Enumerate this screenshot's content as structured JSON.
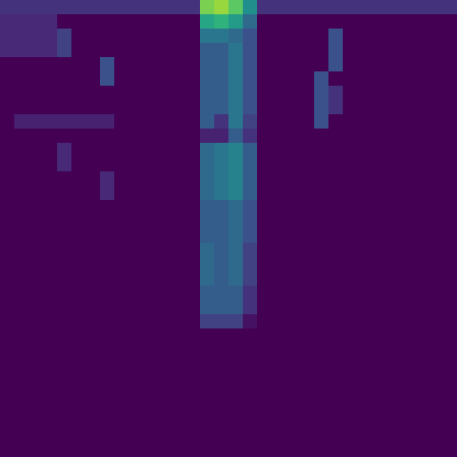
{
  "chart_data": {
    "type": "heatmap",
    "tick_labels": false,
    "color_range": [
      0,
      1
    ],
    "cells": [
      [
        0.15,
        0.15,
        0.15,
        0.15,
        0.15,
        0.15,
        0.15,
        0.15,
        0.15,
        0.15,
        0.15,
        0.15,
        0.15,
        0.15,
        0.8,
        0.85,
        0.75,
        0.5,
        0.15,
        0.15,
        0.15,
        0.15,
        0.15,
        0.15,
        0.15,
        0.15,
        0.15,
        0.15,
        0.15,
        0.15,
        0.15,
        0.15
      ],
      [
        0.12,
        0.12,
        0.12,
        0.12,
        0,
        0,
        0,
        0,
        0,
        0,
        0,
        0,
        0,
        0,
        0.6,
        0.65,
        0.55,
        0.35,
        0,
        0,
        0,
        0,
        0,
        0,
        0,
        0,
        0,
        0,
        0,
        0,
        0,
        0
      ],
      [
        0.12,
        0.12,
        0.12,
        0.12,
        0.2,
        0,
        0,
        0,
        0,
        0,
        0,
        0,
        0,
        0,
        0.4,
        0.4,
        0.35,
        0.25,
        0,
        0,
        0,
        0,
        0,
        0.25,
        0,
        0,
        0,
        0,
        0,
        0,
        0,
        0
      ],
      [
        0.12,
        0.12,
        0.12,
        0.12,
        0.2,
        0,
        0,
        0,
        0,
        0,
        0,
        0,
        0,
        0,
        0.3,
        0.3,
        0.4,
        0.25,
        0,
        0,
        0,
        0,
        0,
        0.25,
        0,
        0,
        0,
        0,
        0,
        0,
        0,
        0
      ],
      [
        0,
        0,
        0,
        0,
        0,
        0,
        0,
        0.25,
        0,
        0,
        0,
        0,
        0,
        0,
        0.3,
        0.3,
        0.4,
        0.25,
        0,
        0,
        0,
        0,
        0,
        0.25,
        0,
        0,
        0,
        0,
        0,
        0,
        0,
        0
      ],
      [
        0,
        0,
        0,
        0,
        0,
        0,
        0,
        0.25,
        0,
        0,
        0,
        0,
        0,
        0,
        0.3,
        0.3,
        0.4,
        0.25,
        0,
        0,
        0,
        0,
        0.25,
        0,
        0,
        0,
        0,
        0,
        0,
        0,
        0,
        0
      ],
      [
        0,
        0,
        0,
        0,
        0,
        0,
        0,
        0,
        0,
        0,
        0,
        0,
        0,
        0,
        0.3,
        0.3,
        0.4,
        0.25,
        0,
        0,
        0,
        0,
        0.25,
        0.15,
        0,
        0,
        0,
        0,
        0,
        0,
        0,
        0
      ],
      [
        0,
        0,
        0,
        0,
        0,
        0,
        0,
        0,
        0,
        0,
        0,
        0,
        0,
        0,
        0.3,
        0.3,
        0.4,
        0.25,
        0,
        0,
        0,
        0,
        0.25,
        0.15,
        0,
        0,
        0,
        0,
        0,
        0,
        0,
        0
      ],
      [
        0,
        0.1,
        0.1,
        0.1,
        0.1,
        0.1,
        0.1,
        0.1,
        0,
        0,
        0,
        0,
        0,
        0,
        0.3,
        0.15,
        0.4,
        0.2,
        0,
        0,
        0,
        0,
        0.25,
        0,
        0,
        0,
        0,
        0,
        0,
        0,
        0,
        0
      ],
      [
        0,
        0,
        0,
        0,
        0,
        0,
        0,
        0,
        0,
        0,
        0,
        0,
        0,
        0,
        0.1,
        0.1,
        0.3,
        0.15,
        0,
        0,
        0,
        0,
        0,
        0,
        0,
        0,
        0,
        0,
        0,
        0,
        0,
        0
      ],
      [
        0,
        0,
        0,
        0,
        0.12,
        0,
        0,
        0,
        0,
        0,
        0,
        0,
        0,
        0,
        0.35,
        0.4,
        0.45,
        0.3,
        0,
        0,
        0,
        0,
        0,
        0,
        0,
        0,
        0,
        0,
        0,
        0,
        0,
        0
      ],
      [
        0,
        0,
        0,
        0,
        0.12,
        0,
        0,
        0,
        0,
        0,
        0,
        0,
        0,
        0,
        0.35,
        0.4,
        0.45,
        0.3,
        0,
        0,
        0,
        0,
        0,
        0,
        0,
        0,
        0,
        0,
        0,
        0,
        0,
        0
      ],
      [
        0,
        0,
        0,
        0,
        0,
        0,
        0,
        0.12,
        0,
        0,
        0,
        0,
        0,
        0,
        0.35,
        0.4,
        0.45,
        0.3,
        0,
        0,
        0,
        0,
        0,
        0,
        0,
        0,
        0,
        0,
        0,
        0,
        0,
        0
      ],
      [
        0,
        0,
        0,
        0,
        0,
        0,
        0,
        0.12,
        0,
        0,
        0,
        0,
        0,
        0,
        0.35,
        0.4,
        0.45,
        0.3,
        0,
        0,
        0,
        0,
        0,
        0,
        0,
        0,
        0,
        0,
        0,
        0,
        0,
        0
      ],
      [
        0,
        0,
        0,
        0,
        0,
        0,
        0,
        0,
        0,
        0,
        0,
        0,
        0,
        0,
        0.3,
        0.3,
        0.35,
        0.25,
        0,
        0,
        0,
        0,
        0,
        0,
        0,
        0,
        0,
        0,
        0,
        0,
        0,
        0
      ],
      [
        0,
        0,
        0,
        0,
        0,
        0,
        0,
        0,
        0,
        0,
        0,
        0,
        0,
        0,
        0.3,
        0.3,
        0.35,
        0.25,
        0,
        0,
        0,
        0,
        0,
        0,
        0,
        0,
        0,
        0,
        0,
        0,
        0,
        0
      ],
      [
        0,
        0,
        0,
        0,
        0,
        0,
        0,
        0,
        0,
        0,
        0,
        0,
        0,
        0,
        0.3,
        0.3,
        0.35,
        0.25,
        0,
        0,
        0,
        0,
        0,
        0,
        0,
        0,
        0,
        0,
        0,
        0,
        0,
        0
      ],
      [
        0,
        0,
        0,
        0,
        0,
        0,
        0,
        0,
        0,
        0,
        0,
        0,
        0,
        0,
        0.35,
        0.3,
        0.35,
        0.2,
        0,
        0,
        0,
        0,
        0,
        0,
        0,
        0,
        0,
        0,
        0,
        0,
        0,
        0
      ],
      [
        0,
        0,
        0,
        0,
        0,
        0,
        0,
        0,
        0,
        0,
        0,
        0,
        0,
        0,
        0.35,
        0.3,
        0.35,
        0.2,
        0,
        0,
        0,
        0,
        0,
        0,
        0,
        0,
        0,
        0,
        0,
        0,
        0,
        0
      ],
      [
        0,
        0,
        0,
        0,
        0,
        0,
        0,
        0,
        0,
        0,
        0,
        0,
        0,
        0,
        0.35,
        0.3,
        0.35,
        0.2,
        0,
        0,
        0,
        0,
        0,
        0,
        0,
        0,
        0,
        0,
        0,
        0,
        0,
        0
      ],
      [
        0,
        0,
        0,
        0,
        0,
        0,
        0,
        0,
        0,
        0,
        0,
        0,
        0,
        0,
        0.3,
        0.3,
        0.3,
        0.15,
        0,
        0,
        0,
        0,
        0,
        0,
        0,
        0,
        0,
        0,
        0,
        0,
        0,
        0
      ],
      [
        0,
        0,
        0,
        0,
        0,
        0,
        0,
        0,
        0,
        0,
        0,
        0,
        0,
        0,
        0.3,
        0.3,
        0.3,
        0.15,
        0,
        0,
        0,
        0,
        0,
        0,
        0,
        0,
        0,
        0,
        0,
        0,
        0,
        0
      ],
      [
        0,
        0,
        0,
        0,
        0,
        0,
        0,
        0,
        0,
        0,
        0,
        0,
        0,
        0,
        0.2,
        0.2,
        0.2,
        0.05,
        0,
        0,
        0,
        0,
        0,
        0,
        0,
        0,
        0,
        0,
        0,
        0,
        0,
        0
      ],
      [
        0,
        0,
        0,
        0,
        0,
        0,
        0,
        0,
        0,
        0,
        0,
        0,
        0,
        0,
        0,
        0,
        0,
        0,
        0,
        0,
        0,
        0,
        0,
        0,
        0,
        0,
        0,
        0,
        0,
        0,
        0,
        0
      ],
      [
        0,
        0,
        0,
        0,
        0,
        0,
        0,
        0,
        0,
        0,
        0,
        0,
        0,
        0,
        0,
        0,
        0,
        0,
        0,
        0,
        0,
        0,
        0,
        0,
        0,
        0,
        0,
        0,
        0,
        0,
        0,
        0
      ],
      [
        0,
        0,
        0,
        0,
        0,
        0,
        0,
        0,
        0,
        0,
        0,
        0,
        0,
        0,
        0,
        0,
        0,
        0,
        0,
        0,
        0,
        0,
        0,
        0,
        0,
        0,
        0,
        0,
        0,
        0,
        0,
        0
      ],
      [
        0,
        0,
        0,
        0,
        0,
        0,
        0,
        0,
        0,
        0,
        0,
        0,
        0,
        0,
        0,
        0,
        0,
        0,
        0,
        0,
        0,
        0,
        0,
        0,
        0,
        0,
        0,
        0,
        0,
        0,
        0,
        0
      ],
      [
        0,
        0,
        0,
        0,
        0,
        0,
        0,
        0,
        0,
        0,
        0,
        0,
        0,
        0,
        0,
        0,
        0,
        0,
        0,
        0,
        0,
        0,
        0,
        0,
        0,
        0,
        0,
        0,
        0,
        0,
        0,
        0
      ],
      [
        0,
        0,
        0,
        0,
        0,
        0,
        0,
        0,
        0,
        0,
        0,
        0,
        0,
        0,
        0,
        0,
        0,
        0,
        0,
        0,
        0,
        0,
        0,
        0,
        0,
        0,
        0,
        0,
        0,
        0,
        0,
        0
      ],
      [
        0,
        0,
        0,
        0,
        0,
        0,
        0,
        0,
        0,
        0,
        0,
        0,
        0,
        0,
        0,
        0,
        0,
        0,
        0,
        0,
        0,
        0,
        0,
        0,
        0,
        0,
        0,
        0,
        0,
        0,
        0,
        0
      ],
      [
        0,
        0,
        0,
        0,
        0,
        0,
        0,
        0,
        0,
        0,
        0,
        0,
        0,
        0,
        0,
        0,
        0,
        0,
        0,
        0,
        0,
        0,
        0,
        0,
        0,
        0,
        0,
        0,
        0,
        0,
        0,
        0
      ],
      [
        0,
        0,
        0,
        0,
        0,
        0,
        0,
        0,
        0,
        0,
        0,
        0,
        0,
        0,
        0,
        0,
        0,
        0,
        0,
        0,
        0,
        0,
        0,
        0,
        0,
        0,
        0,
        0,
        0,
        0,
        0,
        0
      ]
    ]
  }
}
